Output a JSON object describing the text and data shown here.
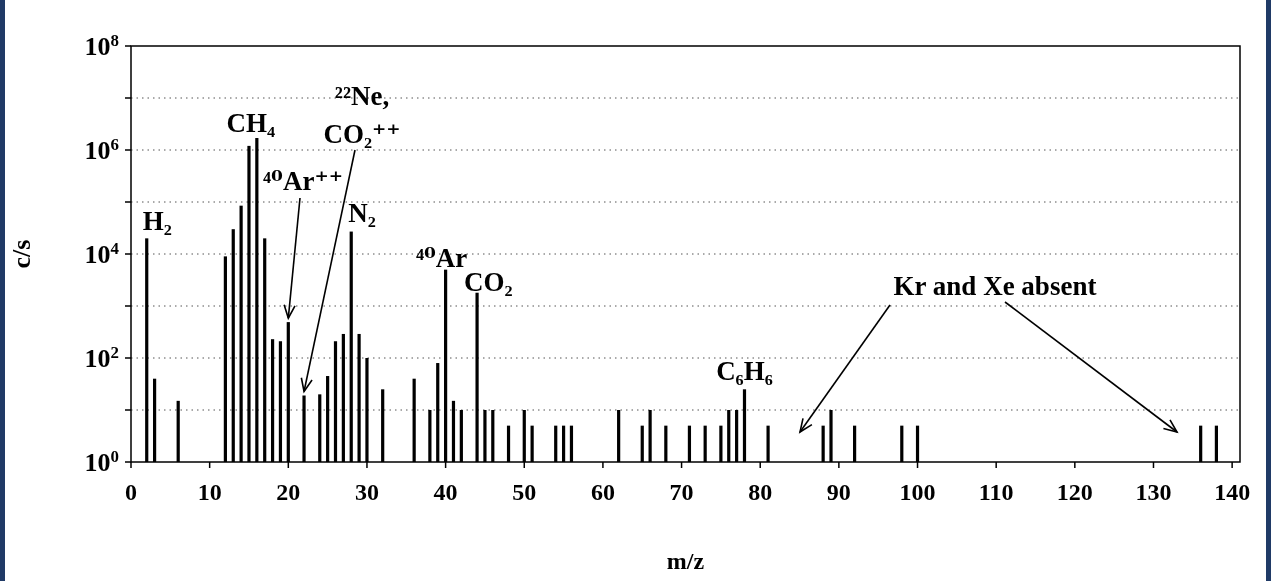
{
  "chart_data": {
    "type": "bar",
    "xlabel": "m/z",
    "ylabel": "c/s",
    "log": "y",
    "grid": "y",
    "x": [
      2,
      3,
      6,
      12,
      13,
      14,
      15,
      16,
      17,
      18,
      19,
      20,
      22,
      24,
      25,
      26,
      27,
      28,
      29,
      30,
      32,
      36,
      38,
      39,
      40,
      41,
      42,
      44,
      45,
      46,
      48,
      50,
      51,
      54,
      55,
      56,
      62,
      65,
      66,
      68,
      71,
      73,
      75,
      76,
      77,
      78,
      81,
      88,
      89,
      92,
      98,
      100,
      136,
      138
    ],
    "values": [
      20000,
      40,
      15,
      9000,
      30000,
      85000,
      1200000,
      1700000,
      20000,
      230,
      210,
      490,
      19,
      20,
      45,
      210,
      290,
      27000,
      290,
      100,
      25,
      40,
      10,
      80,
      5000,
      15,
      10,
      1800,
      10,
      10,
      5,
      10,
      5,
      5,
      5,
      5,
      10,
      5,
      10,
      5,
      5,
      5,
      5,
      10,
      10,
      25,
      5,
      5,
      10,
      5,
      5,
      5,
      5,
      5
    ],
    "color": "#000000",
    "xlim": [
      0,
      141
    ],
    "xticks": [
      0,
      10,
      20,
      30,
      40,
      50,
      60,
      70,
      80,
      90,
      100,
      110,
      120,
      130,
      140
    ],
    "ylim": [
      1,
      100000000
    ],
    "yticks": [
      {
        "value": 1,
        "label": "10$^{0}$"
      },
      {
        "value": 10,
        "label": null
      },
      {
        "value": 100,
        "label": "10$^{2}$"
      },
      {
        "value": 1000,
        "label": null
      },
      {
        "value": 10000,
        "label": "10$^{4}$"
      },
      {
        "value": 100000,
        "label": null
      },
      {
        "value": 1000000,
        "label": "10$^{6}$"
      },
      {
        "value": 10000000,
        "label": null
      },
      {
        "value": 100000000,
        "label": "10$^{8}$"
      }
    ],
    "annotations": [
      {
        "text": "H₂",
        "x": 2,
        "y": 20000
      },
      {
        "text": "CH₄",
        "x": 16,
        "y": 1700000
      },
      {
        "text": "⁴⁰Ar⁺⁺",
        "x": 20,
        "y": 490
      },
      {
        "text": "²²Ne, CO₂⁺⁺",
        "x": 22,
        "y": 19
      },
      {
        "text": "N₂",
        "x": 28,
        "y": 27000
      },
      {
        "text": "⁴⁰Ar",
        "x": 40,
        "y": 5000
      },
      {
        "text": "CO₂",
        "x": 44,
        "y": 1800
      },
      {
        "text": "C₆H₆",
        "x": 78,
        "y": 25
      },
      "Kr and Xe absent"
    ]
  }
}
